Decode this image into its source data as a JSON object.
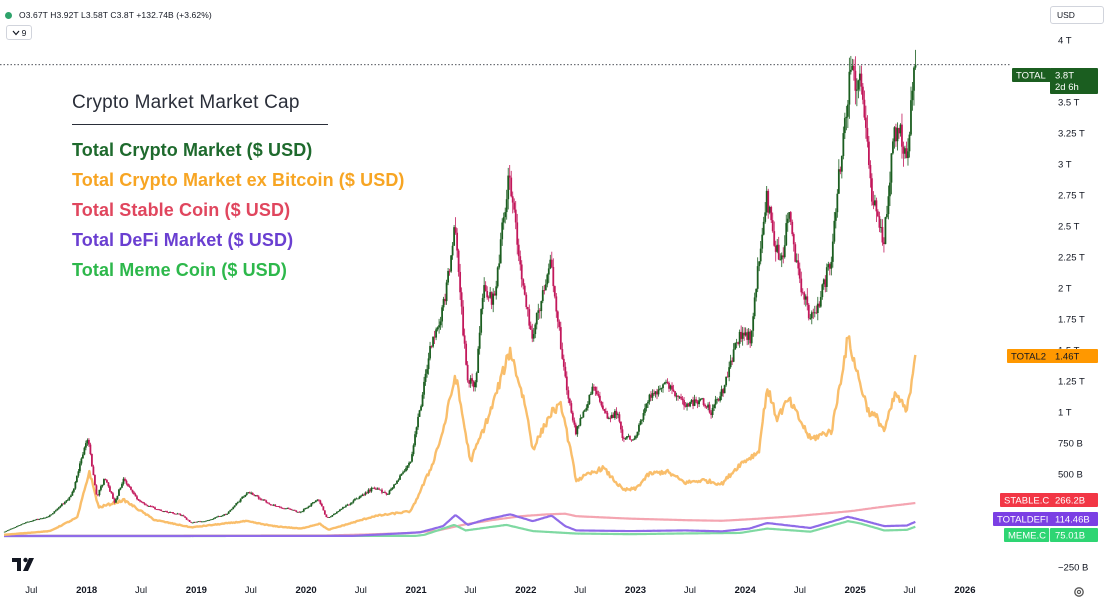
{
  "header": {
    "ohlc_values": "O3.67T H3.92T L3.58T C3.8T +132.74B (+3.62%)",
    "change_color": "#089981",
    "collapse_count": "9",
    "currency": "USD"
  },
  "legend": {
    "title": "Crypto Market Market Cap",
    "items": [
      {
        "label": "Total Crypto Market ($ USD)",
        "color": "#1e6a2d"
      },
      {
        "label": "Total Crypto Market ex Bitcoin ($ USD)",
        "color": "#f7a523"
      },
      {
        "label": "Total Stable Coin ($ USD)",
        "color": "#e0465e"
      },
      {
        "label": "Total DeFi Market ($ USD)",
        "color": "#6a3fd1"
      },
      {
        "label": "Total Meme Coin ($ USD)",
        "color": "#2db84b"
      }
    ]
  },
  "price_tags": [
    {
      "symbol": "TOTAL",
      "value": "3.8T",
      "sub": "2d 6h",
      "color": "#1b5e20",
      "y": 3.8
    },
    {
      "symbol": "TOTAL2",
      "value": "1.46T",
      "color": "#ff9800",
      "y": 1.46
    },
    {
      "symbol": "STABLE.C",
      "value": "266.2B",
      "color": "#f23645",
      "y": 0.2662
    },
    {
      "symbol": "TOTALDEFI",
      "value": "114.46B",
      "color": "#7b3fe4",
      "y": 0.11446
    },
    {
      "symbol": "MEME.C",
      "value": "75.01B",
      "color": "#2ed573",
      "y": 0.07501
    }
  ],
  "icons": {
    "logo": "tradingview-logo-icon",
    "settings": "gear-icon",
    "collapse": "chevron-down-icon",
    "status": "status-dot-icon"
  },
  "chart_data": {
    "type": "line",
    "title": "Crypto Market Market Cap",
    "grid": false,
    "y_unit": "trillion USD",
    "ylim": [
      -0.29,
      4.08
    ],
    "y_ticks": [
      -0.25,
      0.5,
      0.75,
      1.0,
      1.25,
      1.5,
      1.75,
      2.0,
      2.25,
      2.5,
      2.75,
      3.0,
      3.25,
      3.5,
      4.0
    ],
    "y_tick_labels": [
      "−250 B",
      "500 B",
      "750 B",
      "1 T",
      "1.25 T",
      "1.5 T",
      "1.75 T",
      "2 T",
      "2.25 T",
      "2.5 T",
      "2.75 T",
      "3 T",
      "3.25 T",
      "3.5 T",
      "4 T"
    ],
    "xlim": [
      "2017-04-01",
      "2026-05-01"
    ],
    "x_ticks": [
      {
        "date": "2017-07-01",
        "label": "Jul",
        "year": false
      },
      {
        "date": "2018-01-01",
        "label": "2018",
        "year": true
      },
      {
        "date": "2018-07-01",
        "label": "Jul",
        "year": false
      },
      {
        "date": "2019-01-01",
        "label": "2019",
        "year": true
      },
      {
        "date": "2019-07-01",
        "label": "Jul",
        "year": false
      },
      {
        "date": "2020-01-01",
        "label": "2020",
        "year": true
      },
      {
        "date": "2020-07-01",
        "label": "Jul",
        "year": false
      },
      {
        "date": "2021-01-01",
        "label": "2021",
        "year": true
      },
      {
        "date": "2021-07-01",
        "label": "Jul",
        "year": false
      },
      {
        "date": "2022-01-01",
        "label": "2022",
        "year": true
      },
      {
        "date": "2022-07-01",
        "label": "Jul",
        "year": false
      },
      {
        "date": "2023-01-01",
        "label": "2023",
        "year": true
      },
      {
        "date": "2023-07-01",
        "label": "Jul",
        "year": false
      },
      {
        "date": "2024-01-01",
        "label": "2024",
        "year": true
      },
      {
        "date": "2024-07-01",
        "label": "Jul",
        "year": false
      },
      {
        "date": "2025-01-01",
        "label": "2025",
        "year": true
      },
      {
        "date": "2025-07-01",
        "label": "Jul",
        "year": false
      },
      {
        "date": "2026-01-01",
        "label": "2026",
        "year": true
      }
    ],
    "current_price_line": 3.8,
    "series": [
      {
        "name": "TOTAL",
        "style": "candles",
        "up_color": "#1b5e20",
        "down_color": "#c2185b",
        "points": [
          [
            "2017-04-01",
            0.03
          ],
          [
            "2017-06-15",
            0.11
          ],
          [
            "2017-09-01",
            0.16
          ],
          [
            "2017-11-15",
            0.33
          ],
          [
            "2018-01-07",
            0.8
          ],
          [
            "2018-02-06",
            0.31
          ],
          [
            "2018-03-05",
            0.47
          ],
          [
            "2018-04-07",
            0.27
          ],
          [
            "2018-05-05",
            0.46
          ],
          [
            "2018-07-01",
            0.27
          ],
          [
            "2018-09-01",
            0.21
          ],
          [
            "2018-11-15",
            0.17
          ],
          [
            "2018-12-15",
            0.11
          ],
          [
            "2019-02-01",
            0.12
          ],
          [
            "2019-04-15",
            0.18
          ],
          [
            "2019-06-26",
            0.36
          ],
          [
            "2019-09-01",
            0.26
          ],
          [
            "2019-12-15",
            0.19
          ],
          [
            "2020-02-13",
            0.3
          ],
          [
            "2020-03-13",
            0.14
          ],
          [
            "2020-05-01",
            0.22
          ],
          [
            "2020-08-15",
            0.39
          ],
          [
            "2020-10-01",
            0.34
          ],
          [
            "2020-12-15",
            0.6
          ],
          [
            "2021-01-15",
            1.0
          ],
          [
            "2021-02-20",
            1.52
          ],
          [
            "2021-04-01",
            1.8
          ],
          [
            "2021-05-12",
            2.48
          ],
          [
            "2021-06-22",
            1.27
          ],
          [
            "2021-07-20",
            1.22
          ],
          [
            "2021-08-15",
            2.0
          ],
          [
            "2021-09-20",
            1.9
          ],
          [
            "2021-11-09",
            2.97
          ],
          [
            "2021-12-15",
            2.2
          ],
          [
            "2022-01-24",
            1.6
          ],
          [
            "2022-03-28",
            2.2
          ],
          [
            "2022-05-12",
            1.3
          ],
          [
            "2022-06-18",
            0.82
          ],
          [
            "2022-08-14",
            1.2
          ],
          [
            "2022-09-30",
            0.95
          ],
          [
            "2022-11-05",
            1.0
          ],
          [
            "2022-11-21",
            0.79
          ],
          [
            "2023-01-01",
            0.8
          ],
          [
            "2023-02-15",
            1.1
          ],
          [
            "2023-04-15",
            1.25
          ],
          [
            "2023-06-15",
            1.06
          ],
          [
            "2023-08-15",
            1.1
          ],
          [
            "2023-09-11",
            1.0
          ],
          [
            "2023-10-25",
            1.2
          ],
          [
            "2023-12-15",
            1.63
          ],
          [
            "2024-01-20",
            1.6
          ],
          [
            "2024-03-14",
            2.72
          ],
          [
            "2024-05-01",
            2.15
          ],
          [
            "2024-05-25",
            2.6
          ],
          [
            "2024-07-05",
            2.05
          ],
          [
            "2024-08-05",
            1.77
          ],
          [
            "2024-09-06",
            1.88
          ],
          [
            "2024-10-15",
            2.25
          ],
          [
            "2024-11-15",
            3.0
          ],
          [
            "2024-12-17",
            3.7
          ],
          [
            "2025-01-20",
            3.68
          ],
          [
            "2025-02-15",
            3.05
          ],
          [
            "2025-03-01",
            2.72
          ],
          [
            "2025-03-15",
            2.6
          ],
          [
            "2025-04-08",
            2.35
          ],
          [
            "2025-05-15",
            3.28
          ],
          [
            "2025-06-05",
            3.27
          ],
          [
            "2025-06-22",
            3.0
          ],
          [
            "2025-07-05",
            3.35
          ],
          [
            "2025-07-20",
            3.8
          ]
        ]
      },
      {
        "name": "TOTAL2",
        "style": "line",
        "color": "#f9be6b",
        "points": [
          [
            "2017-04-01",
            0.01
          ],
          [
            "2017-09-01",
            0.04
          ],
          [
            "2017-12-01",
            0.15
          ],
          [
            "2018-01-10",
            0.52
          ],
          [
            "2018-02-10",
            0.23
          ],
          [
            "2018-05-05",
            0.29
          ],
          [
            "2018-08-15",
            0.13
          ],
          [
            "2018-12-15",
            0.07
          ],
          [
            "2019-06-15",
            0.12
          ],
          [
            "2019-09-15",
            0.08
          ],
          [
            "2019-12-15",
            0.06
          ],
          [
            "2020-02-15",
            0.1
          ],
          [
            "2020-03-15",
            0.05
          ],
          [
            "2020-08-15",
            0.16
          ],
          [
            "2020-12-15",
            0.2
          ],
          [
            "2021-02-20",
            0.55
          ],
          [
            "2021-04-01",
            0.85
          ],
          [
            "2021-05-12",
            1.3
          ],
          [
            "2021-07-01",
            0.6
          ],
          [
            "2021-09-05",
            1.0
          ],
          [
            "2021-11-10",
            1.5
          ],
          [
            "2021-12-31",
            1.05
          ],
          [
            "2022-01-24",
            0.7
          ],
          [
            "2022-03-28",
            1.0
          ],
          [
            "2022-04-30",
            1.05
          ],
          [
            "2022-06-18",
            0.45
          ],
          [
            "2022-09-15",
            0.55
          ],
          [
            "2022-11-21",
            0.37
          ],
          [
            "2023-01-01",
            0.38
          ],
          [
            "2023-02-15",
            0.5
          ],
          [
            "2023-04-15",
            0.52
          ],
          [
            "2023-06-15",
            0.43
          ],
          [
            "2023-08-15",
            0.45
          ],
          [
            "2023-10-15",
            0.42
          ],
          [
            "2023-12-15",
            0.58
          ],
          [
            "2024-02-15",
            0.68
          ],
          [
            "2024-03-14",
            1.2
          ],
          [
            "2024-04-15",
            0.95
          ],
          [
            "2024-05-25",
            1.1
          ],
          [
            "2024-08-05",
            0.78
          ],
          [
            "2024-10-15",
            0.85
          ],
          [
            "2024-12-08",
            1.6
          ],
          [
            "2025-01-15",
            1.25
          ],
          [
            "2025-02-15",
            1.0
          ],
          [
            "2025-03-15",
            0.95
          ],
          [
            "2025-04-08",
            0.85
          ],
          [
            "2025-05-15",
            1.15
          ],
          [
            "2025-06-22",
            1.0
          ],
          [
            "2025-07-20",
            1.46
          ]
        ]
      },
      {
        "name": "STABLE.C",
        "style": "line",
        "color": "#f4a5b1",
        "points": [
          [
            "2017-04-01",
            0.002
          ],
          [
            "2018-12-15",
            0.003
          ],
          [
            "2020-03-15",
            0.005
          ],
          [
            "2020-07-15",
            0.012
          ],
          [
            "2020-12-15",
            0.025
          ],
          [
            "2021-03-15",
            0.045
          ],
          [
            "2021-06-15",
            0.095
          ],
          [
            "2021-09-15",
            0.13
          ],
          [
            "2021-12-15",
            0.16
          ],
          [
            "2022-03-15",
            0.175
          ],
          [
            "2022-05-12",
            0.18
          ],
          [
            "2022-06-18",
            0.16
          ],
          [
            "2022-12-15",
            0.14
          ],
          [
            "2023-06-15",
            0.128
          ],
          [
            "2023-10-15",
            0.123
          ],
          [
            "2024-01-15",
            0.135
          ],
          [
            "2024-06-15",
            0.16
          ],
          [
            "2024-12-15",
            0.2
          ],
          [
            "2025-03-15",
            0.23
          ],
          [
            "2025-07-20",
            0.2662
          ]
        ]
      },
      {
        "name": "TOTALDEFI",
        "style": "line",
        "color": "#8f6be8",
        "points": [
          [
            "2017-04-01",
            0.0
          ],
          [
            "2020-06-01",
            0.001
          ],
          [
            "2020-09-01",
            0.012
          ],
          [
            "2021-01-15",
            0.03
          ],
          [
            "2021-04-01",
            0.08
          ],
          [
            "2021-05-12",
            0.17
          ],
          [
            "2021-06-22",
            0.09
          ],
          [
            "2021-08-15",
            0.13
          ],
          [
            "2021-11-10",
            0.175
          ],
          [
            "2022-01-24",
            0.12
          ],
          [
            "2022-03-28",
            0.165
          ],
          [
            "2022-05-12",
            0.08
          ],
          [
            "2022-06-18",
            0.045
          ],
          [
            "2022-12-15",
            0.04
          ],
          [
            "2023-06-15",
            0.045
          ],
          [
            "2023-10-15",
            0.038
          ],
          [
            "2024-01-15",
            0.06
          ],
          [
            "2024-03-14",
            0.105
          ],
          [
            "2024-08-05",
            0.065
          ],
          [
            "2024-12-08",
            0.155
          ],
          [
            "2025-01-20",
            0.13
          ],
          [
            "2025-04-08",
            0.08
          ],
          [
            "2025-06-22",
            0.085
          ],
          [
            "2025-07-20",
            0.11446
          ]
        ]
      },
      {
        "name": "MEME.C",
        "style": "line",
        "color": "#7fd9a2",
        "points": [
          [
            "2017-04-01",
            0.0
          ],
          [
            "2020-12-31",
            0.001
          ],
          [
            "2021-01-29",
            0.01
          ],
          [
            "2021-05-08",
            0.09
          ],
          [
            "2021-06-15",
            0.045
          ],
          [
            "2021-10-28",
            0.09
          ],
          [
            "2022-01-24",
            0.04
          ],
          [
            "2022-06-18",
            0.02
          ],
          [
            "2022-12-15",
            0.015
          ],
          [
            "2023-05-15",
            0.02
          ],
          [
            "2023-12-15",
            0.025
          ],
          [
            "2024-03-14",
            0.06
          ],
          [
            "2024-08-05",
            0.035
          ],
          [
            "2024-12-08",
            0.12
          ],
          [
            "2025-01-20",
            0.1
          ],
          [
            "2025-04-08",
            0.045
          ],
          [
            "2025-06-22",
            0.05
          ],
          [
            "2025-07-20",
            0.07501
          ]
        ]
      }
    ]
  }
}
